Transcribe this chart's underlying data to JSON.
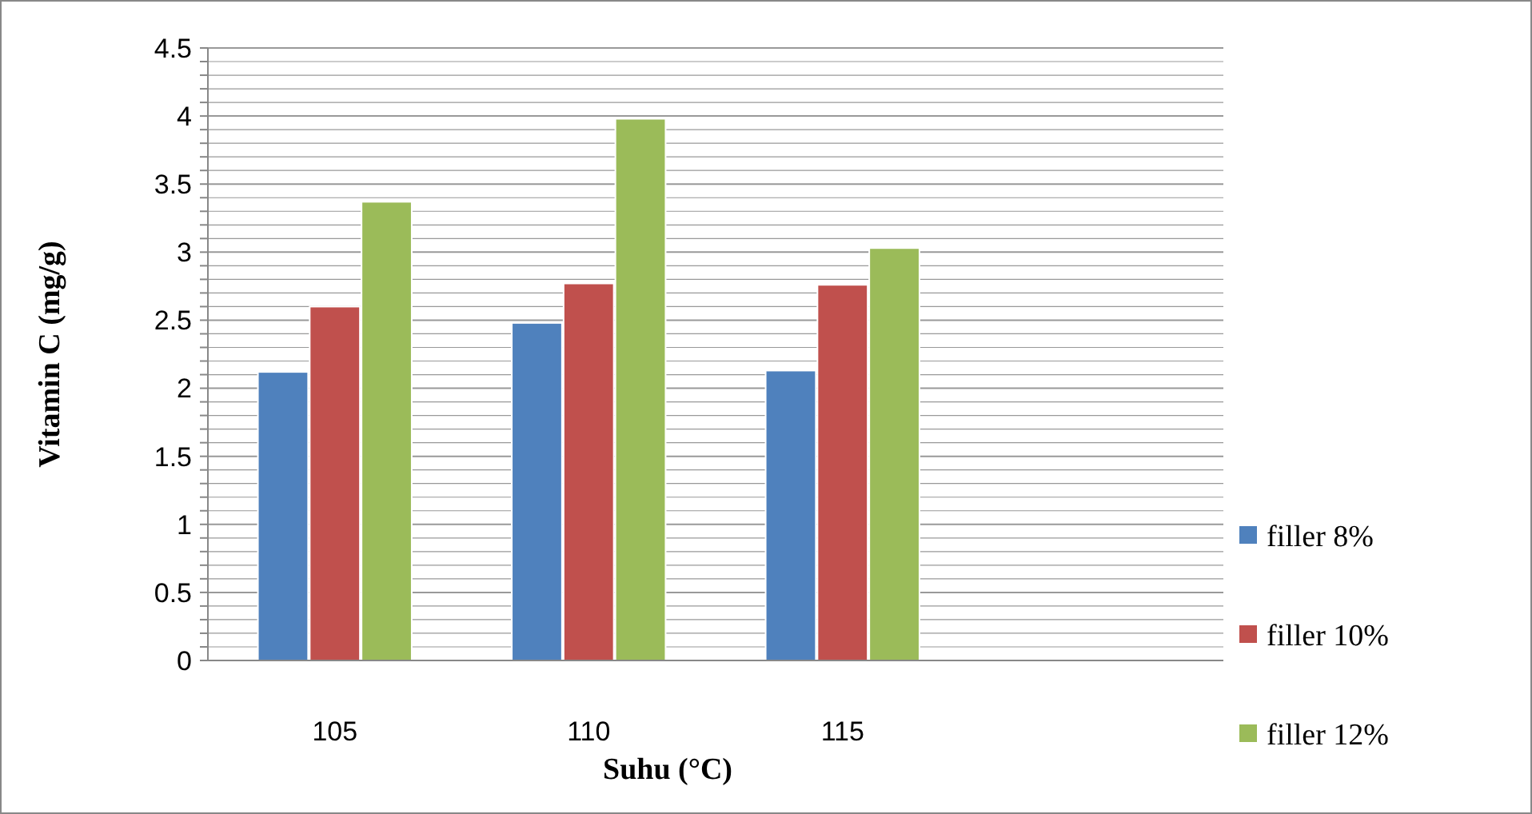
{
  "chart_data": {
    "type": "bar",
    "xlabel": "Suhu (°C)",
    "ylabel": "Vitamin C (mg/g)",
    "categories": [
      "105",
      "110",
      "115",
      null
    ],
    "series": [
      {
        "name": "filler 8%",
        "color": "#4f81bd",
        "values": [
          2.12,
          2.48,
          2.13,
          null
        ]
      },
      {
        "name": "filler 10%",
        "color": "#c0504d",
        "values": [
          2.6,
          2.77,
          2.76,
          null
        ]
      },
      {
        "name": "filler 12%",
        "color": "#9bbb59",
        "values": [
          3.37,
          3.98,
          3.03,
          null
        ]
      }
    ],
    "ylim": [
      0,
      4.5
    ],
    "yticks": [
      0,
      {
        "value": 0.1,
        "label": null
      },
      {
        "value": 0.2,
        "label": null
      },
      {
        "value": 0.3,
        "label": null
      },
      {
        "value": 0.4,
        "label": null
      },
      0.5,
      {
        "value": 0.6,
        "label": null
      },
      {
        "value": 0.7,
        "label": null
      },
      {
        "value": 0.8,
        "label": null
      },
      {
        "value": 0.9,
        "label": null
      },
      1,
      {
        "value": 1.1,
        "label": null
      },
      {
        "value": 1.2,
        "label": null
      },
      {
        "value": 1.3,
        "label": null
      },
      {
        "value": 1.4,
        "label": null
      },
      1.5,
      {
        "value": 1.6,
        "label": null
      },
      {
        "value": 1.7,
        "label": null
      },
      {
        "value": 1.8,
        "label": null
      },
      {
        "value": 1.9,
        "label": null
      },
      2,
      {
        "value": 2.1,
        "label": null
      },
      {
        "value": 2.2,
        "label": null
      },
      {
        "value": 2.3,
        "label": null
      },
      {
        "value": 2.4,
        "label": null
      },
      2.5,
      {
        "value": 2.6,
        "label": null
      },
      {
        "value": 2.7,
        "label": null
      },
      {
        "value": 2.8,
        "label": null
      },
      {
        "value": 2.9,
        "label": null
      },
      3,
      {
        "value": 3.1,
        "label": null
      },
      {
        "value": 3.2,
        "label": null
      },
      {
        "value": 3.3,
        "label": null
      },
      {
        "value": 3.4,
        "label": null
      },
      3.5,
      {
        "value": 3.6,
        "label": null
      },
      {
        "value": 3.7,
        "label": null
      },
      {
        "value": 3.8,
        "label": null
      },
      {
        "value": 3.9,
        "label": null
      },
      4,
      {
        "value": 4.1,
        "label": null
      },
      {
        "value": 4.2,
        "label": null
      },
      {
        "value": 4.3,
        "label": null
      },
      {
        "value": 4.4,
        "label": null
      },
      4.5
    ],
    "grid": true,
    "legend": "right"
  }
}
